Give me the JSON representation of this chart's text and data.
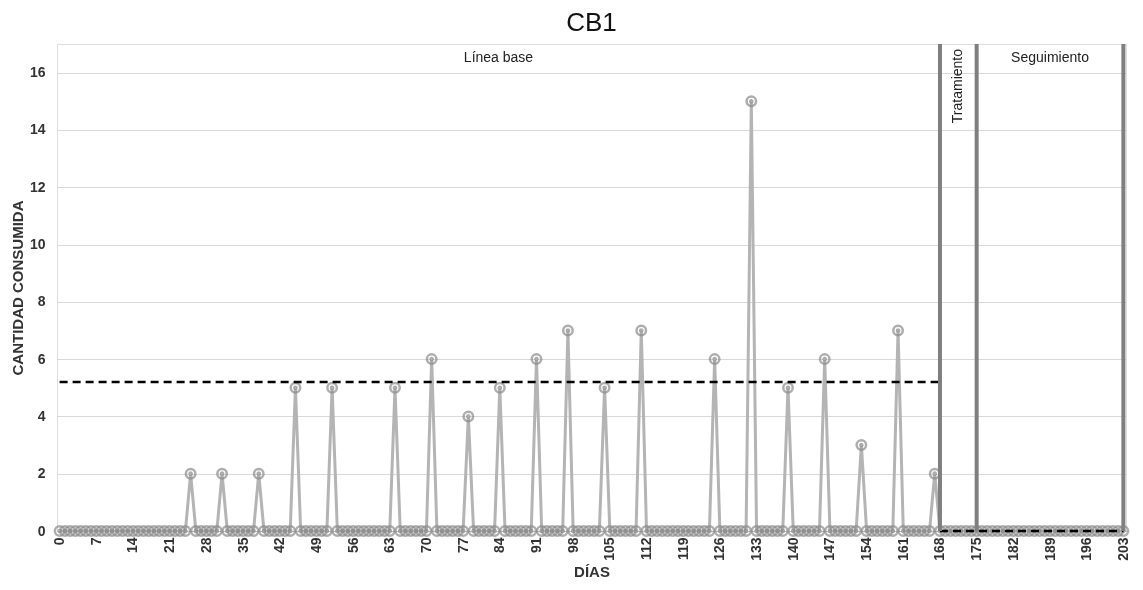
{
  "chart_data": {
    "type": "line",
    "title": "CB1",
    "xlabel": "DÍAS",
    "ylabel": "CANTIDAD CONSUMIDA",
    "x": [
      0,
      1,
      2,
      3,
      4,
      5,
      6,
      7,
      8,
      9,
      10,
      11,
      12,
      13,
      14,
      15,
      16,
      17,
      18,
      19,
      20,
      21,
      22,
      23,
      24,
      25,
      26,
      27,
      28,
      29,
      30,
      31,
      32,
      33,
      34,
      35,
      36,
      37,
      38,
      39,
      40,
      41,
      42,
      43,
      44,
      45,
      46,
      47,
      48,
      49,
      50,
      51,
      52,
      53,
      54,
      55,
      56,
      57,
      58,
      59,
      60,
      61,
      62,
      63,
      64,
      65,
      66,
      67,
      68,
      69,
      70,
      71,
      72,
      73,
      74,
      75,
      76,
      77,
      78,
      79,
      80,
      81,
      82,
      83,
      84,
      85,
      86,
      87,
      88,
      89,
      90,
      91,
      92,
      93,
      94,
      95,
      96,
      97,
      98,
      99,
      100,
      101,
      102,
      103,
      104,
      105,
      106,
      107,
      108,
      109,
      110,
      111,
      112,
      113,
      114,
      115,
      116,
      117,
      118,
      119,
      120,
      121,
      122,
      123,
      124,
      125,
      126,
      127,
      128,
      129,
      130,
      131,
      132,
      133,
      134,
      135,
      136,
      137,
      138,
      139,
      140,
      141,
      142,
      143,
      144,
      145,
      146,
      147,
      148,
      149,
      150,
      151,
      152,
      153,
      154,
      155,
      156,
      157,
      158,
      159,
      160,
      161,
      162,
      163,
      164,
      165,
      166,
      167,
      168,
      169,
      170,
      171,
      172,
      173,
      174,
      175,
      176,
      177,
      178,
      179,
      180,
      181,
      182,
      183,
      184,
      185,
      186,
      187,
      188,
      189,
      190,
      191,
      192,
      193,
      194,
      195,
      196,
      197,
      198,
      199,
      200,
      201,
      202,
      203
    ],
    "series": [
      {
        "color": "#b4b4b4",
        "marker": "circle",
        "values": [
          0,
          0,
          0,
          0,
          0,
          0,
          0,
          0,
          0,
          0,
          0,
          0,
          0,
          0,
          0,
          0,
          0,
          0,
          0,
          0,
          0,
          0,
          0,
          0,
          0,
          2,
          0,
          0,
          0,
          0,
          0,
          2,
          0,
          0,
          0,
          0,
          0,
          0,
          2,
          0,
          0,
          0,
          0,
          0,
          0,
          5,
          0,
          0,
          0,
          0,
          0,
          0,
          5,
          0,
          0,
          0,
          0,
          0,
          0,
          0,
          0,
          0,
          0,
          0,
          5,
          0,
          0,
          0,
          0,
          0,
          0,
          6,
          0,
          0,
          0,
          0,
          0,
          0,
          4,
          0,
          0,
          0,
          0,
          0,
          5,
          0,
          0,
          0,
          0,
          0,
          0,
          6,
          0,
          0,
          0,
          0,
          0,
          7,
          0,
          0,
          0,
          0,
          0,
          0,
          5,
          0,
          0,
          0,
          0,
          0,
          0,
          7,
          0,
          0,
          0,
          0,
          0,
          0,
          0,
          0,
          0,
          0,
          0,
          0,
          0,
          6,
          0,
          0,
          0,
          0,
          0,
          0,
          15,
          0,
          0,
          0,
          0,
          0,
          0,
          5,
          0,
          0,
          0,
          0,
          0,
          0,
          6,
          0,
          0,
          0,
          0,
          0,
          0,
          3,
          0,
          0,
          0,
          0,
          0,
          0,
          7,
          0,
          0,
          0,
          0,
          0,
          0,
          2,
          0,
          0,
          0,
          0,
          0,
          0,
          0,
          0,
          0,
          0,
          0,
          0,
          0,
          0,
          0,
          0,
          0,
          0,
          0,
          0,
          0,
          0,
          0,
          0,
          0,
          0,
          0,
          0,
          0,
          0,
          0,
          0,
          0,
          0,
          0,
          0
        ]
      },
      {
        "type": "line",
        "color": "#000000",
        "line_style": "dashed",
        "marker": "none",
        "x": [
          0,
          168
        ],
        "values": [
          5.2,
          5.2
        ]
      },
      {
        "type": "line",
        "color": "#000000",
        "line_style": "dashed",
        "marker": "none",
        "x": [
          168,
          203
        ],
        "values": [
          0,
          0
        ]
      }
    ],
    "xlim": [
      -0.5,
      203.5
    ],
    "xticks": [
      0,
      7,
      14,
      21,
      28,
      35,
      42,
      49,
      56,
      63,
      70,
      77,
      84,
      91,
      98,
      105,
      112,
      119,
      126,
      133,
      140,
      147,
      154,
      161,
      168,
      175,
      182,
      189,
      196,
      203
    ],
    "ylim": [
      0,
      17
    ],
    "yticks": [
      0,
      2,
      4,
      6,
      8,
      10,
      12,
      14,
      16
    ],
    "grid": "y",
    "ref_lines": [
      {
        "axis": "x",
        "value": 168,
        "color": "#7f7f7f"
      },
      {
        "axis": "x",
        "value": 175,
        "color": "#7f7f7f"
      },
      {
        "axis": "x",
        "value": 203,
        "color": "#7f7f7f"
      }
    ],
    "annotations": [
      "Línea base",
      "Tratamiento",
      "Seguimiento"
    ]
  }
}
